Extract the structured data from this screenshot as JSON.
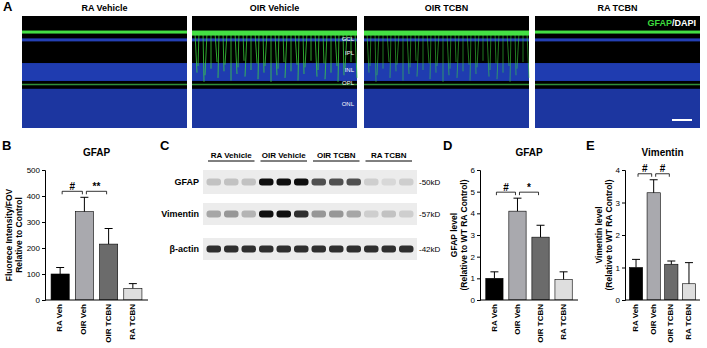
{
  "panel_labels": [
    "A",
    "B",
    "C",
    "D",
    "E"
  ],
  "images": {
    "conditions": [
      "RA Vehicle",
      "OIR Vehicle",
      "OIR TCBN",
      "RA TCBN"
    ],
    "stain": [
      "GFAP",
      "/DAPI"
    ],
    "layers": [
      "GCL",
      "IPL",
      "INL",
      "OPL",
      "ONL"
    ]
  },
  "blot": {
    "groups": [
      "RA Vehicle",
      "OIR Vehicle",
      "OIR TCBN",
      "RA TCBN"
    ],
    "proteins": [
      {
        "name": "GFAP",
        "size": "-50kD"
      },
      {
        "name": "Vimentin",
        "size": "-57kD"
      },
      {
        "name": "β-actin",
        "size": "-42kD"
      }
    ]
  },
  "chart_data": [
    {
      "type": "bar",
      "title": "GFAP",
      "y_label": [
        "Fluorece Intensity/FOV",
        "Relative to Control"
      ],
      "categories": [
        "RA Veh",
        "OIR Veh",
        "OIR TCBN",
        "RA TCBN"
      ],
      "values": [
        100,
        340,
        215,
        45
      ],
      "errors": [
        25,
        55,
        60,
        18
      ],
      "colors": [
        "#000000",
        "#a9a9ae",
        "#6b6b6b",
        "#dedede"
      ],
      "ylim": [
        0,
        500
      ],
      "yticks": [
        0,
        100,
        200,
        300,
        400,
        500
      ],
      "comparisons": [
        {
          "label": "#",
          "between": [
            "RA Veh",
            "OIR Veh"
          ]
        },
        {
          "label": "**",
          "between": [
            "OIR Veh",
            "OIR TCBN"
          ]
        }
      ]
    },
    {
      "type": "bar",
      "title": "GFAP",
      "y_label": [
        "GFAP level",
        "(Relative to WT RA Control)"
      ],
      "categories": [
        "RA Veh",
        "OIR Veh",
        "OIR TCBN",
        "RA TCBN"
      ],
      "values": [
        1,
        4.1,
        2.9,
        0.95
      ],
      "errors": [
        0.3,
        0.6,
        0.55,
        0.35
      ],
      "colors": [
        "#000000",
        "#a9a9ae",
        "#6b6b6b",
        "#dedede"
      ],
      "ylim": [
        0,
        6
      ],
      "yticks": [
        0,
        1,
        2,
        3,
        4,
        5,
        6
      ],
      "comparisons": [
        {
          "label": "#",
          "between": [
            "RA Veh",
            "OIR Veh"
          ]
        },
        {
          "label": "*",
          "between": [
            "OIR Veh",
            "OIR TCBN"
          ]
        }
      ]
    },
    {
      "type": "bar",
      "title": "Vimentin",
      "y_label": [
        "Vimentin level",
        "(Relative to WT RA Control)"
      ],
      "categories": [
        "RA Veh",
        "OIR Veh",
        "OIR TCBN",
        "RA TCBN"
      ],
      "values": [
        1,
        3.3,
        1.1,
        0.5
      ],
      "errors": [
        0.25,
        0.4,
        0.1,
        0.65
      ],
      "colors": [
        "#000000",
        "#a9a9ae",
        "#6b6b6b",
        "#dedede"
      ],
      "ylim": [
        0,
        4
      ],
      "yticks": [
        0,
        1,
        2,
        3,
        4
      ],
      "comparisons": [
        {
          "label": "#",
          "between": [
            "RA Veh",
            "OIR Veh"
          ]
        },
        {
          "label": "#",
          "between": [
            "OIR Veh",
            "OIR TCBN"
          ]
        }
      ]
    }
  ]
}
